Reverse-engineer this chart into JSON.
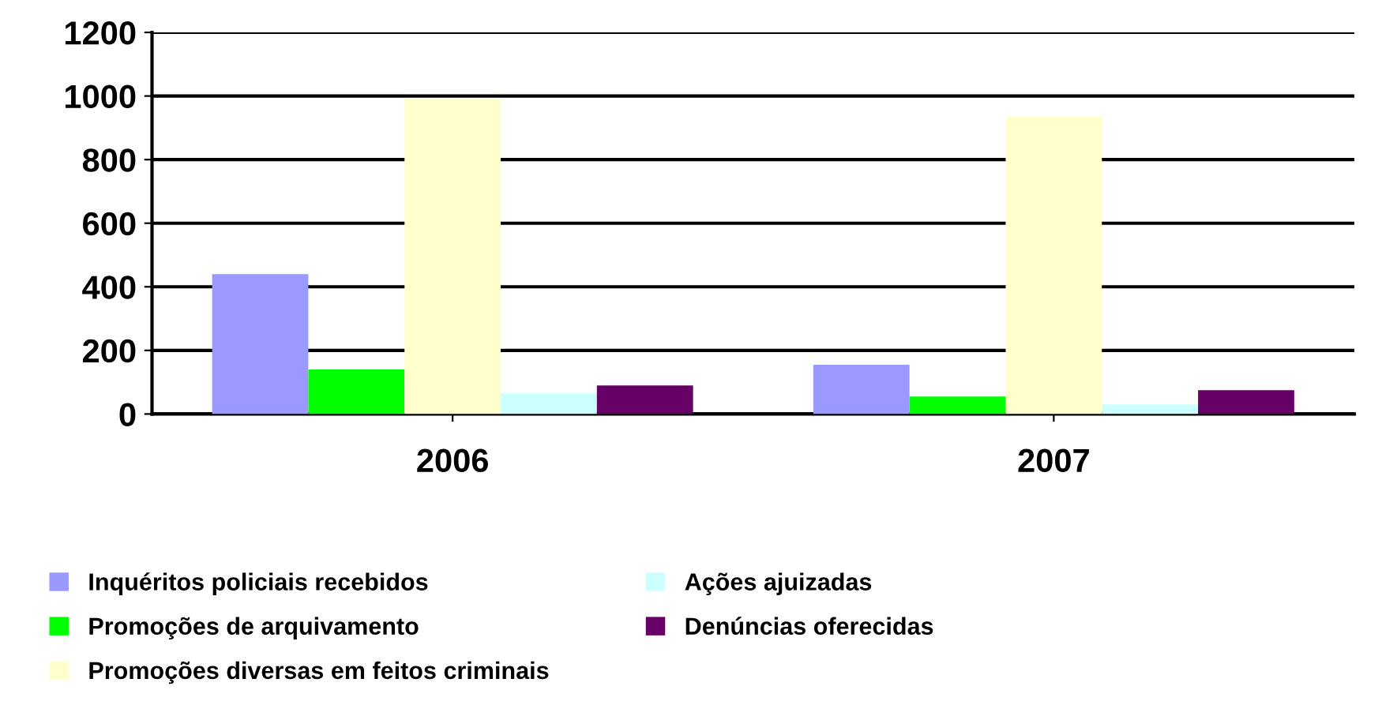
{
  "chart_data": {
    "type": "bar",
    "categories": [
      "2006",
      "2007"
    ],
    "series": [
      {
        "name": "Inquéritos policiais recebidos",
        "color": "#9999ff",
        "values": [
          440,
          155
        ]
      },
      {
        "name": "Promoções de arquivamento",
        "color": "#00ff00",
        "values": [
          140,
          55
        ]
      },
      {
        "name": "Promoções diversas em feitos criminais",
        "color": "#ffffcc",
        "values": [
          990,
          935
        ]
      },
      {
        "name": "Ações ajuizadas",
        "color": "#ccffff",
        "values": [
          65,
          30
        ]
      },
      {
        "name": "Denúncias oferecidas",
        "color": "#660066",
        "values": [
          90,
          75
        ]
      }
    ],
    "ylim": [
      0,
      1200
    ],
    "yticks": [
      0,
      200,
      400,
      600,
      800,
      1000,
      1200
    ],
    "grid": "y",
    "legend": "bottom"
  }
}
